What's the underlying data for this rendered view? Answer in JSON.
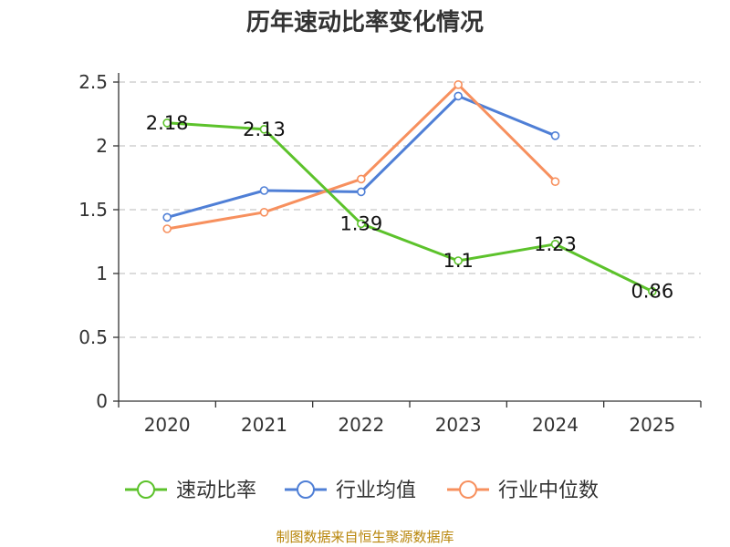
{
  "chart_data": {
    "type": "line",
    "title": "历年速动比率变化情况",
    "categories": [
      "2020",
      "2021",
      "2022",
      "2023",
      "2024",
      "2025"
    ],
    "ylim": [
      0,
      2.5
    ],
    "yticks": [
      "0",
      "0.5",
      "1",
      "1.5",
      "2",
      "2.5"
    ],
    "ytick_values": [
      0,
      0.5,
      1,
      1.5,
      2,
      2.5
    ],
    "grid": true,
    "legend_position": "bottom",
    "series": [
      {
        "name": "速动比率",
        "color": "#5cc22b",
        "values": [
          2.18,
          2.13,
          1.39,
          1.1,
          1.23,
          0.86
        ],
        "labels": [
          "2.18",
          "2.13",
          "1.39",
          "1.1",
          "1.23",
          "0.86"
        ]
      },
      {
        "name": "行业均值",
        "color": "#4f7fd6",
        "values": [
          1.44,
          1.65,
          1.64,
          2.39,
          2.08,
          null
        ]
      },
      {
        "name": "行业中位数",
        "color": "#f7905e",
        "values": [
          1.35,
          1.48,
          1.74,
          2.48,
          1.72,
          null
        ]
      }
    ]
  },
  "source_note": "制图数据来自恒生聚源数据库"
}
